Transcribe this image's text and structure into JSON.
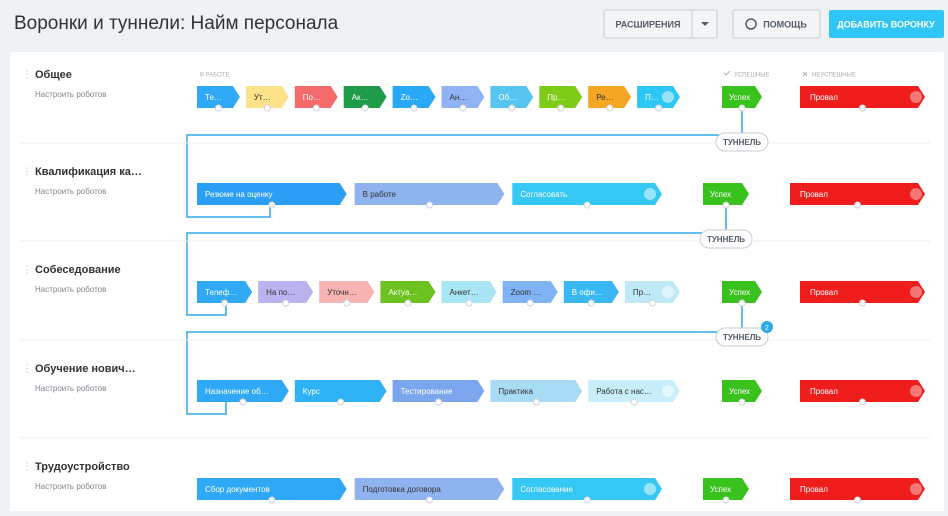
{
  "header": {
    "title": "Воронки и туннели: Найм персонала",
    "buttons": [
      "РАСШИРЕНИЯ",
      "ПОМОЩЬ",
      "ДОБАВИТЬ ВОРОНКУ"
    ]
  },
  "columns": {
    "in_work": "В РАБОТЕ",
    "success": "УСПЕШНЫЕ",
    "fail": "НЕУСПЕШНЫЕ"
  },
  "funnels": [
    {
      "name": "Общее",
      "robots": "Настроить роботов",
      "stages": [
        {
          "label": "Те…",
          "color": "#2fa9f5"
        },
        {
          "label": "Ут…",
          "color": "#fde28a"
        },
        {
          "label": "По…",
          "color": "#f56b6b"
        },
        {
          "label": "Ак…",
          "color": "#1e9c4a"
        },
        {
          "label": "Zo…",
          "color": "#29a9f5"
        },
        {
          "label": "Ан…",
          "color": "#8fb3f5"
        },
        {
          "label": "Об…",
          "color": "#56c5f0"
        },
        {
          "label": "Пр…",
          "color": "#7ecc17"
        },
        {
          "label": "Ре…",
          "color": "#f5a623"
        },
        {
          "label": "П…",
          "color": "#2cc7f5"
        }
      ],
      "success": {
        "label": "Успех",
        "color": "#39c21e"
      },
      "fail": {
        "label": "Провал",
        "color": "#f01d1d"
      }
    },
    {
      "name": "Квалификация ка…",
      "robots": "Настроить роботов",
      "stages": [
        {
          "label": "Резюме на оценку",
          "color": "#2d9ef5"
        },
        {
          "label": "В работе",
          "color": "#8fb3ee"
        },
        {
          "label": "Согласовать",
          "color": "#35c8f5"
        }
      ],
      "success": {
        "label": "Успех",
        "color": "#39c21e"
      },
      "fail": {
        "label": "Провал",
        "color": "#f01d1d"
      }
    },
    {
      "name": "Собеседование",
      "robots": "Настроить роботов",
      "stages": [
        {
          "label": "Телеф…",
          "color": "#2fa9f5"
        },
        {
          "label": "На по…",
          "color": "#b9b3f0"
        },
        {
          "label": "Уточн…",
          "color": "#f8b3b3"
        },
        {
          "label": "Актуа…",
          "color": "#6cc31f"
        },
        {
          "label": "Анкет…",
          "color": "#a8e6f5"
        },
        {
          "label": "Zoom …",
          "color": "#7fb3f5"
        },
        {
          "label": "В офи…",
          "color": "#39b8f5"
        },
        {
          "label": "Пр…",
          "color": "#bfe9f7"
        }
      ],
      "success": {
        "label": "Успех",
        "color": "#39c21e"
      },
      "fail": {
        "label": "Провал",
        "color": "#f01d1d"
      }
    },
    {
      "name": "Обучение нович…",
      "robots": "Настроить роботов",
      "stages": [
        {
          "label": "Назначение об…",
          "color": "#2fa9f5"
        },
        {
          "label": "Курс",
          "color": "#2fb2f5"
        },
        {
          "label": "Тестирование",
          "color": "#7ba6ee"
        },
        {
          "label": "Практика",
          "color": "#a8dcf5"
        },
        {
          "label": "Работа с нас…",
          "color": "#c8eefa"
        }
      ],
      "success": {
        "label": "Успех",
        "color": "#39c21e"
      },
      "fail": {
        "label": "Провал",
        "color": "#f01d1d"
      }
    },
    {
      "name": "Трудоустройство",
      "robots": "Настроить роботов",
      "stages": [
        {
          "label": "Сбор документов",
          "color": "#2fa9f5"
        },
        {
          "label": "Подготовка договора",
          "color": "#8fb3ee"
        },
        {
          "label": "Согласование",
          "color": "#35c8f5"
        }
      ],
      "success": {
        "label": "Успех",
        "color": "#39c21e"
      },
      "fail": {
        "label": "Провал",
        "color": "#f01d1d"
      }
    }
  ],
  "tunnels": [
    {
      "label": "ТУННЕЛЬ"
    },
    {
      "label": "ТУННЕЛЬ"
    },
    {
      "label": "ТУННЕЛЬ",
      "badge": "2"
    }
  ]
}
